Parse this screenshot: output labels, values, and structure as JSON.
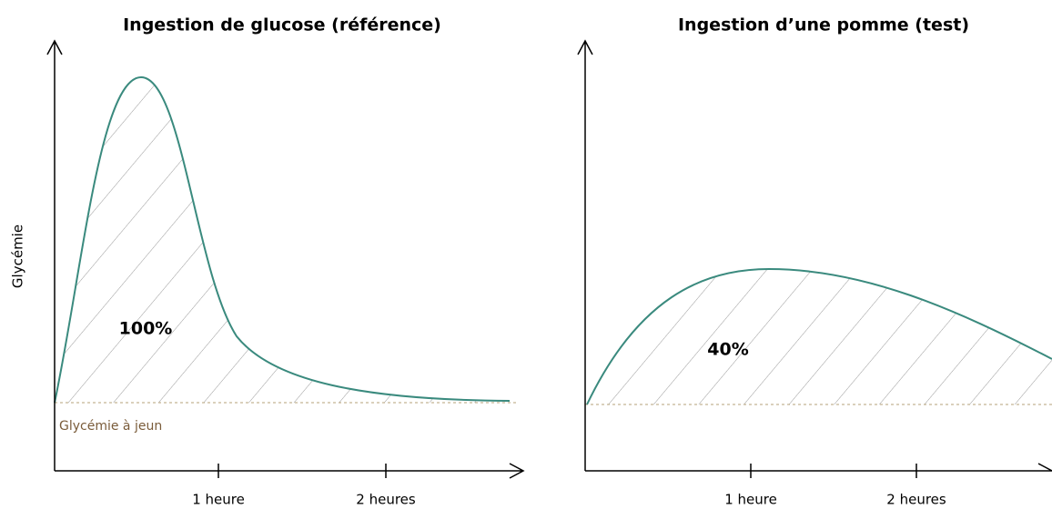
{
  "y_label": "Glycémie",
  "baseline_label": "Glycémie à jeun",
  "panels": [
    {
      "title": "Ingestion de glucose (référence)",
      "area_label": "100%",
      "ticks": [
        "1 heure",
        "2 heures"
      ]
    },
    {
      "title": "Ingestion d’une pomme (test)",
      "area_label": "40%",
      "ticks": [
        "1 heure",
        "2 heures"
      ]
    }
  ]
}
